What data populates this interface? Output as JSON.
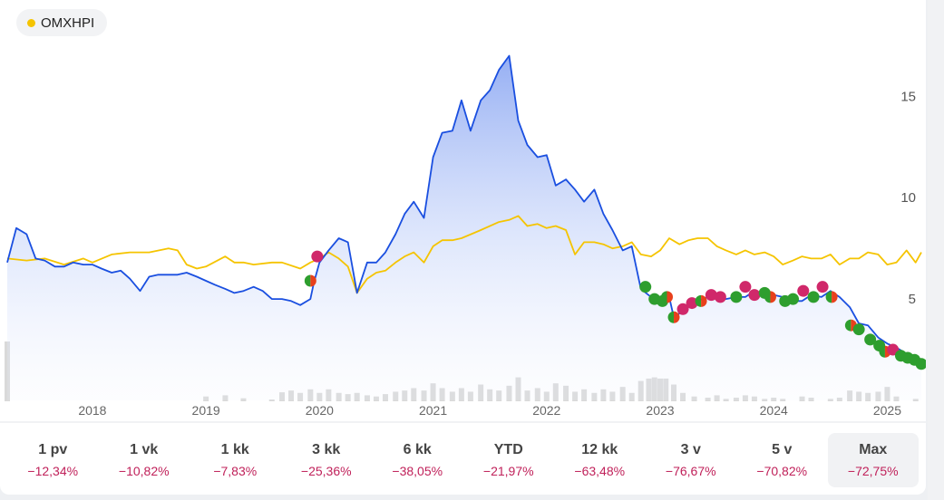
{
  "legend": {
    "label": "OMXHPI",
    "color": "#f5c400"
  },
  "periods": [
    {
      "label": "1 pv",
      "change": "−12,34%"
    },
    {
      "label": "1 vk",
      "change": "−10,82%"
    },
    {
      "label": "1 kk",
      "change": "−7,83%"
    },
    {
      "label": "3 kk",
      "change": "−25,36%"
    },
    {
      "label": "6 kk",
      "change": "−38,05%"
    },
    {
      "label": "YTD",
      "change": "−21,97%"
    },
    {
      "label": "12 kk",
      "change": "−63,48%"
    },
    {
      "label": "3 v",
      "change": "−76,67%"
    },
    {
      "label": "5 v",
      "change": "−70,82%"
    },
    {
      "label": "Max",
      "change": "−72,75%"
    }
  ],
  "active_period": "Max",
  "chart_data": {
    "type": "line",
    "title": "",
    "xlabel": "",
    "ylabel": "",
    "x_ticks": [
      "2018",
      "2019",
      "2020",
      "2021",
      "2022",
      "2023",
      "2024",
      "2025"
    ],
    "y_ticks": [
      5,
      10,
      15
    ],
    "ylim": [
      0,
      18.5
    ],
    "xlim": [
      2017.25,
      2025.3
    ],
    "grid": false,
    "y_axis_side": "right",
    "colors": {
      "stock": "#1a4fe0",
      "index": "#f5c400",
      "positive_marker": "#2e9e2e",
      "negative_marker": "#d0286a",
      "volume": "#d9d9d9"
    },
    "series": [
      {
        "role": "stock",
        "points": [
          [
            2017.25,
            6.8
          ],
          [
            2017.33,
            8.5
          ],
          [
            2017.42,
            8.2
          ],
          [
            2017.5,
            7.0
          ],
          [
            2017.58,
            6.9
          ],
          [
            2017.67,
            6.6
          ],
          [
            2017.75,
            6.6
          ],
          [
            2017.83,
            6.8
          ],
          [
            2017.92,
            6.7
          ],
          [
            2018.0,
            6.7
          ],
          [
            2018.08,
            6.5
          ],
          [
            2018.17,
            6.3
          ],
          [
            2018.25,
            6.4
          ],
          [
            2018.33,
            6.0
          ],
          [
            2018.42,
            5.4
          ],
          [
            2018.5,
            6.1
          ],
          [
            2018.58,
            6.2
          ],
          [
            2018.67,
            6.2
          ],
          [
            2018.75,
            6.2
          ],
          [
            2018.83,
            6.3
          ],
          [
            2018.92,
            6.1
          ],
          [
            2019.0,
            5.9
          ],
          [
            2019.08,
            5.7
          ],
          [
            2019.17,
            5.5
          ],
          [
            2019.25,
            5.3
          ],
          [
            2019.33,
            5.4
          ],
          [
            2019.42,
            5.6
          ],
          [
            2019.5,
            5.4
          ],
          [
            2019.58,
            5.0
          ],
          [
            2019.67,
            5.0
          ],
          [
            2019.75,
            4.9
          ],
          [
            2019.83,
            4.7
          ],
          [
            2019.92,
            5.0
          ],
          [
            2019.95,
            5.8
          ],
          [
            2020.0,
            6.8
          ],
          [
            2020.08,
            7.4
          ],
          [
            2020.17,
            8.0
          ],
          [
            2020.25,
            7.8
          ],
          [
            2020.33,
            5.3
          ],
          [
            2020.42,
            6.8
          ],
          [
            2020.5,
            6.8
          ],
          [
            2020.58,
            7.3
          ],
          [
            2020.67,
            8.2
          ],
          [
            2020.75,
            9.2
          ],
          [
            2020.83,
            9.8
          ],
          [
            2020.92,
            9.0
          ],
          [
            2021.0,
            12.0
          ],
          [
            2021.08,
            13.2
          ],
          [
            2021.17,
            13.3
          ],
          [
            2021.25,
            14.8
          ],
          [
            2021.33,
            13.3
          ],
          [
            2021.42,
            14.8
          ],
          [
            2021.5,
            15.3
          ],
          [
            2021.58,
            16.3
          ],
          [
            2021.67,
            17.0
          ],
          [
            2021.75,
            13.8
          ],
          [
            2021.83,
            12.6
          ],
          [
            2021.92,
            12.0
          ],
          [
            2022.0,
            12.1
          ],
          [
            2022.08,
            10.6
          ],
          [
            2022.17,
            10.9
          ],
          [
            2022.25,
            10.4
          ],
          [
            2022.33,
            9.8
          ],
          [
            2022.42,
            10.4
          ],
          [
            2022.5,
            9.2
          ],
          [
            2022.58,
            8.4
          ],
          [
            2022.67,
            7.4
          ],
          [
            2022.75,
            7.6
          ],
          [
            2022.83,
            5.5
          ],
          [
            2022.92,
            5.1
          ],
          [
            2023.0,
            4.9
          ],
          [
            2023.08,
            5.1
          ],
          [
            2023.12,
            4.1
          ],
          [
            2023.2,
            4.4
          ],
          [
            2023.25,
            4.7
          ],
          [
            2023.33,
            4.9
          ],
          [
            2023.42,
            5.1
          ],
          [
            2023.5,
            5.1
          ],
          [
            2023.58,
            5.0
          ],
          [
            2023.67,
            5.1
          ],
          [
            2023.75,
            5.1
          ],
          [
            2023.83,
            5.4
          ],
          [
            2023.92,
            5.2
          ],
          [
            2024.0,
            5.2
          ],
          [
            2024.08,
            5.1
          ],
          [
            2024.17,
            4.9
          ],
          [
            2024.25,
            4.9
          ],
          [
            2024.33,
            5.2
          ],
          [
            2024.42,
            5.1
          ],
          [
            2024.5,
            5.4
          ],
          [
            2024.58,
            5.1
          ],
          [
            2024.67,
            4.6
          ],
          [
            2024.75,
            3.8
          ],
          [
            2024.83,
            3.7
          ],
          [
            2024.92,
            3.1
          ],
          [
            2025.0,
            2.8
          ],
          [
            2025.08,
            2.6
          ],
          [
            2025.17,
            2.3
          ],
          [
            2025.25,
            2.2
          ],
          [
            2025.3,
            2.0
          ]
        ]
      },
      {
        "role": "index",
        "points": [
          [
            2017.25,
            7.0
          ],
          [
            2017.42,
            6.9
          ],
          [
            2017.58,
            7.0
          ],
          [
            2017.75,
            6.7
          ],
          [
            2017.92,
            7.0
          ],
          [
            2018.0,
            6.8
          ],
          [
            2018.17,
            7.2
          ],
          [
            2018.33,
            7.3
          ],
          [
            2018.5,
            7.3
          ],
          [
            2018.67,
            7.5
          ],
          [
            2018.75,
            7.4
          ],
          [
            2018.83,
            6.7
          ],
          [
            2018.92,
            6.5
          ],
          [
            2019.0,
            6.6
          ],
          [
            2019.17,
            7.1
          ],
          [
            2019.25,
            6.8
          ],
          [
            2019.33,
            6.8
          ],
          [
            2019.42,
            6.7
          ],
          [
            2019.58,
            6.8
          ],
          [
            2019.67,
            6.8
          ],
          [
            2019.83,
            6.5
          ],
          [
            2019.92,
            6.8
          ],
          [
            2020.0,
            7.0
          ],
          [
            2020.08,
            7.3
          ],
          [
            2020.17,
            7.0
          ],
          [
            2020.25,
            6.6
          ],
          [
            2020.33,
            5.3
          ],
          [
            2020.42,
            6.0
          ],
          [
            2020.5,
            6.3
          ],
          [
            2020.58,
            6.4
          ],
          [
            2020.67,
            6.8
          ],
          [
            2020.75,
            7.1
          ],
          [
            2020.83,
            7.3
          ],
          [
            2020.92,
            6.8
          ],
          [
            2021.0,
            7.6
          ],
          [
            2021.08,
            7.9
          ],
          [
            2021.17,
            7.9
          ],
          [
            2021.25,
            8.0
          ],
          [
            2021.42,
            8.4
          ],
          [
            2021.58,
            8.8
          ],
          [
            2021.67,
            8.9
          ],
          [
            2021.75,
            9.1
          ],
          [
            2021.83,
            8.6
          ],
          [
            2021.92,
            8.7
          ],
          [
            2022.0,
            8.5
          ],
          [
            2022.08,
            8.6
          ],
          [
            2022.17,
            8.4
          ],
          [
            2022.25,
            7.2
          ],
          [
            2022.33,
            7.8
          ],
          [
            2022.42,
            7.8
          ],
          [
            2022.5,
            7.7
          ],
          [
            2022.58,
            7.5
          ],
          [
            2022.67,
            7.6
          ],
          [
            2022.75,
            7.8
          ],
          [
            2022.83,
            7.2
          ],
          [
            2022.92,
            7.1
          ],
          [
            2023.0,
            7.4
          ],
          [
            2023.08,
            8.0
          ],
          [
            2023.17,
            7.7
          ],
          [
            2023.25,
            7.9
          ],
          [
            2023.33,
            8.0
          ],
          [
            2023.42,
            8.0
          ],
          [
            2023.5,
            7.6
          ],
          [
            2023.58,
            7.4
          ],
          [
            2023.67,
            7.2
          ],
          [
            2023.75,
            7.4
          ],
          [
            2023.83,
            7.2
          ],
          [
            2023.92,
            7.3
          ],
          [
            2024.0,
            7.1
          ],
          [
            2024.08,
            6.7
          ],
          [
            2024.17,
            6.9
          ],
          [
            2024.25,
            7.1
          ],
          [
            2024.33,
            7.0
          ],
          [
            2024.42,
            7.0
          ],
          [
            2024.5,
            7.2
          ],
          [
            2024.58,
            6.7
          ],
          [
            2024.67,
            7.0
          ],
          [
            2024.75,
            7.0
          ],
          [
            2024.83,
            7.3
          ],
          [
            2024.92,
            7.2
          ],
          [
            2025.0,
            6.7
          ],
          [
            2025.08,
            6.8
          ],
          [
            2025.17,
            7.4
          ],
          [
            2025.25,
            6.8
          ],
          [
            2025.3,
            7.3
          ]
        ]
      }
    ],
    "markers": [
      {
        "x": 2019.92,
        "y": 5.9,
        "kind": "mixed"
      },
      {
        "x": 2019.98,
        "y": 7.1,
        "kind": "negative"
      },
      {
        "x": 2022.87,
        "y": 5.6,
        "kind": "positive"
      },
      {
        "x": 2022.95,
        "y": 5.0,
        "kind": "positive"
      },
      {
        "x": 2023.02,
        "y": 4.9,
        "kind": "positive"
      },
      {
        "x": 2023.06,
        "y": 5.1,
        "kind": "mixed"
      },
      {
        "x": 2023.12,
        "y": 4.1,
        "kind": "mixed"
      },
      {
        "x": 2023.2,
        "y": 4.5,
        "kind": "negative"
      },
      {
        "x": 2023.28,
        "y": 4.8,
        "kind": "negative"
      },
      {
        "x": 2023.36,
        "y": 4.9,
        "kind": "mixed"
      },
      {
        "x": 2023.45,
        "y": 5.2,
        "kind": "negative"
      },
      {
        "x": 2023.53,
        "y": 5.1,
        "kind": "negative"
      },
      {
        "x": 2023.67,
        "y": 5.1,
        "kind": "positive"
      },
      {
        "x": 2023.75,
        "y": 5.6,
        "kind": "negative"
      },
      {
        "x": 2023.83,
        "y": 5.2,
        "kind": "negative"
      },
      {
        "x": 2023.92,
        "y": 5.3,
        "kind": "positive"
      },
      {
        "x": 2023.97,
        "y": 5.1,
        "kind": "mixed"
      },
      {
        "x": 2024.1,
        "y": 4.9,
        "kind": "positive"
      },
      {
        "x": 2024.17,
        "y": 5.0,
        "kind": "positive"
      },
      {
        "x": 2024.26,
        "y": 5.4,
        "kind": "negative"
      },
      {
        "x": 2024.35,
        "y": 5.1,
        "kind": "positive"
      },
      {
        "x": 2024.43,
        "y": 5.6,
        "kind": "negative"
      },
      {
        "x": 2024.51,
        "y": 5.1,
        "kind": "mixed"
      },
      {
        "x": 2024.68,
        "y": 3.7,
        "kind": "mixed"
      },
      {
        "x": 2024.75,
        "y": 3.5,
        "kind": "positive"
      },
      {
        "x": 2024.85,
        "y": 3.0,
        "kind": "positive"
      },
      {
        "x": 2024.93,
        "y": 2.7,
        "kind": "positive"
      },
      {
        "x": 2024.98,
        "y": 2.4,
        "kind": "mixed"
      },
      {
        "x": 2025.05,
        "y": 2.5,
        "kind": "negative"
      },
      {
        "x": 2025.12,
        "y": 2.2,
        "kind": "positive"
      },
      {
        "x": 2025.18,
        "y": 2.1,
        "kind": "positive"
      },
      {
        "x": 2025.24,
        "y": 2.0,
        "kind": "positive"
      },
      {
        "x": 2025.3,
        "y": 1.8,
        "kind": "positive"
      }
    ],
    "volume": [
      [
        2017.25,
        1.0
      ],
      [
        2019.0,
        0.08
      ],
      [
        2019.17,
        0.1
      ],
      [
        2019.33,
        0.05
      ],
      [
        2019.58,
        0.03
      ],
      [
        2019.67,
        0.15
      ],
      [
        2019.75,
        0.18
      ],
      [
        2019.83,
        0.14
      ],
      [
        2019.92,
        0.2
      ],
      [
        2020.0,
        0.14
      ],
      [
        2020.08,
        0.2
      ],
      [
        2020.17,
        0.14
      ],
      [
        2020.25,
        0.12
      ],
      [
        2020.33,
        0.14
      ],
      [
        2020.42,
        0.1
      ],
      [
        2020.5,
        0.08
      ],
      [
        2020.58,
        0.12
      ],
      [
        2020.67,
        0.16
      ],
      [
        2020.75,
        0.18
      ],
      [
        2020.83,
        0.22
      ],
      [
        2020.92,
        0.18
      ],
      [
        2021.0,
        0.3
      ],
      [
        2021.08,
        0.22
      ],
      [
        2021.17,
        0.16
      ],
      [
        2021.25,
        0.22
      ],
      [
        2021.33,
        0.16
      ],
      [
        2021.42,
        0.28
      ],
      [
        2021.5,
        0.2
      ],
      [
        2021.58,
        0.18
      ],
      [
        2021.67,
        0.26
      ],
      [
        2021.75,
        0.4
      ],
      [
        2021.83,
        0.18
      ],
      [
        2021.92,
        0.22
      ],
      [
        2022.0,
        0.16
      ],
      [
        2022.08,
        0.3
      ],
      [
        2022.17,
        0.26
      ],
      [
        2022.25,
        0.16
      ],
      [
        2022.33,
        0.2
      ],
      [
        2022.42,
        0.14
      ],
      [
        2022.5,
        0.2
      ],
      [
        2022.58,
        0.16
      ],
      [
        2022.67,
        0.24
      ],
      [
        2022.75,
        0.14
      ],
      [
        2022.83,
        0.34
      ],
      [
        2022.9,
        0.38
      ],
      [
        2022.95,
        0.4
      ],
      [
        2023.0,
        0.38
      ],
      [
        2023.05,
        0.38
      ],
      [
        2023.12,
        0.28
      ],
      [
        2023.2,
        0.14
      ],
      [
        2023.3,
        0.08
      ],
      [
        2023.42,
        0.06
      ],
      [
        2023.5,
        0.1
      ],
      [
        2023.58,
        0.04
      ],
      [
        2023.67,
        0.06
      ],
      [
        2023.75,
        0.1
      ],
      [
        2023.83,
        0.08
      ],
      [
        2023.92,
        0.04
      ],
      [
        2024.0,
        0.06
      ],
      [
        2024.08,
        0.04
      ],
      [
        2024.25,
        0.08
      ],
      [
        2024.33,
        0.06
      ],
      [
        2024.5,
        0.04
      ],
      [
        2024.58,
        0.06
      ],
      [
        2024.67,
        0.18
      ],
      [
        2024.75,
        0.16
      ],
      [
        2024.83,
        0.14
      ],
      [
        2024.92,
        0.16
      ],
      [
        2025.0,
        0.24
      ],
      [
        2025.08,
        0.08
      ],
      [
        2025.25,
        0.04
      ]
    ]
  }
}
